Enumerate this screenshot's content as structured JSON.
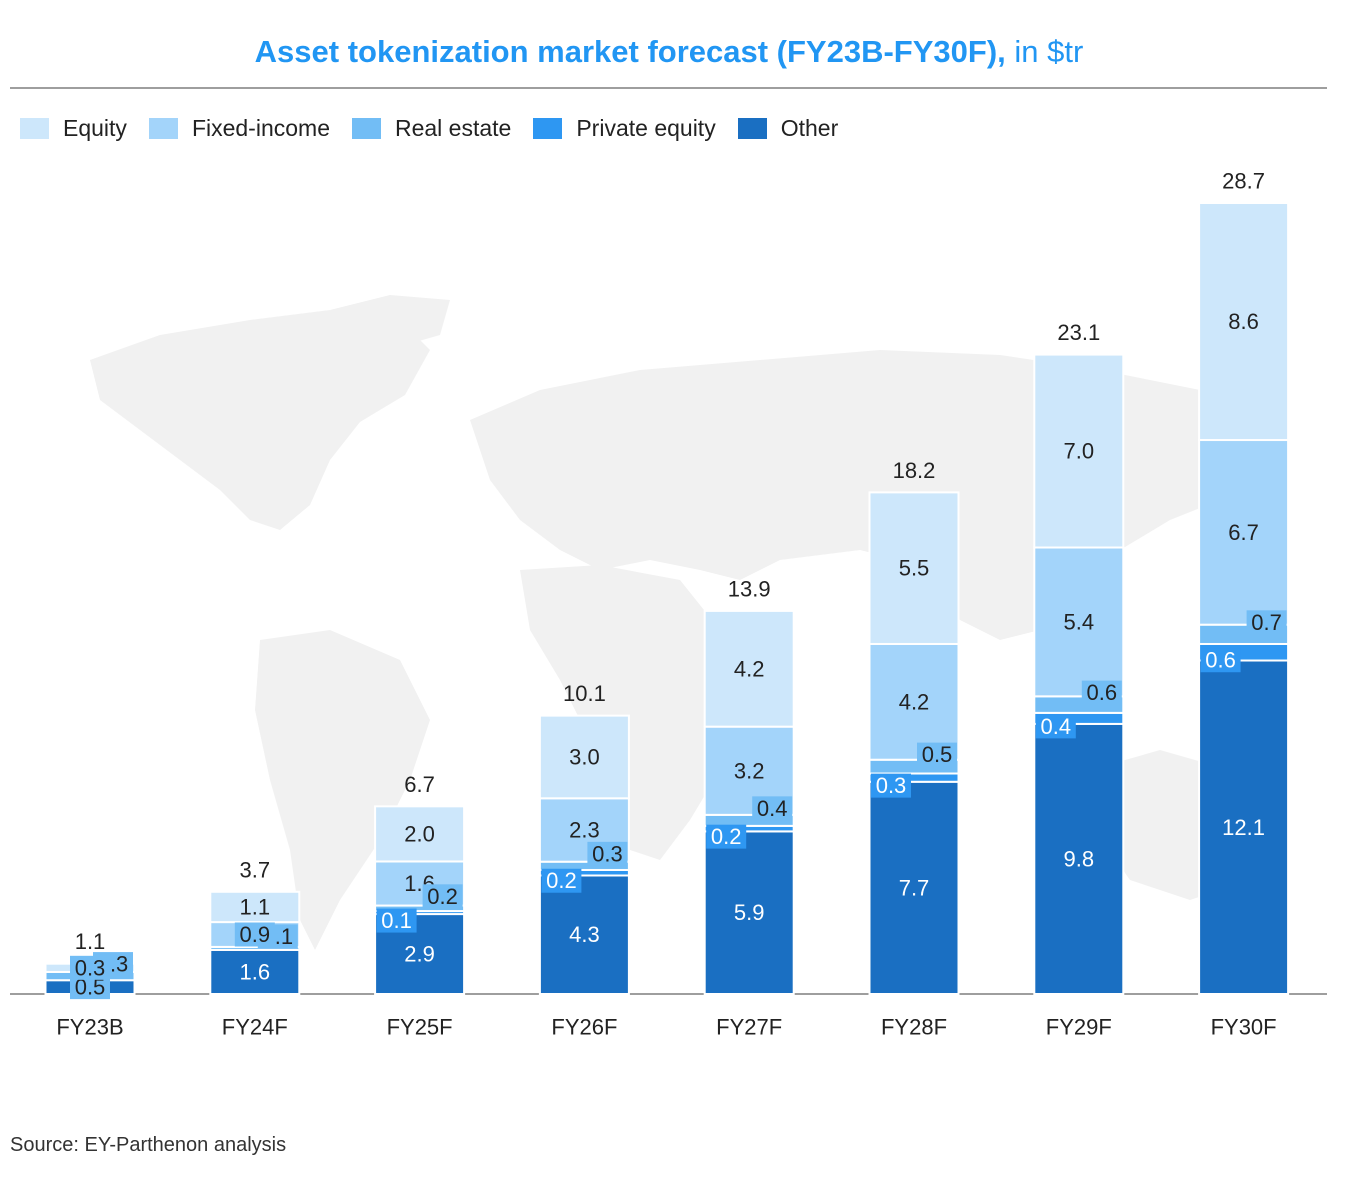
{
  "header": {
    "title_bold": "Asset tokenization market forecast (FY23B-FY30F),",
    "title_unit": " in $tr"
  },
  "footer": {
    "source": "Source: EY-Parthenon analysis"
  },
  "chart_data": {
    "type": "bar",
    "stacked": true,
    "categories": [
      "FY23B",
      "FY24F",
      "FY25F",
      "FY26F",
      "FY27F",
      "FY28F",
      "FY29F",
      "FY30F"
    ],
    "series": [
      {
        "name": "Other",
        "color": "#1A6FC2",
        "values": [
          0.5,
          1.6,
          2.9,
          4.3,
          5.9,
          7.7,
          9.8,
          12.1
        ],
        "labels": [
          "0.5",
          "1.6",
          "2.9",
          "4.3",
          "5.9",
          "7.7",
          "9.8",
          "12.1"
        ]
      },
      {
        "name": "Private equity",
        "color": "#2E97F2",
        "values": [
          0.0,
          0.0,
          0.1,
          0.2,
          0.2,
          0.3,
          0.4,
          0.6
        ],
        "labels": [
          "",
          "",
          "0.1",
          "0.2",
          "0.2",
          "0.3",
          "0.4",
          "0.6"
        ]
      },
      {
        "name": "Real estate",
        "color": "#72BDF5",
        "values": [
          0.3,
          0.1,
          0.2,
          0.3,
          0.4,
          0.5,
          0.6,
          0.7
        ],
        "labels": [
          "0.3",
          "0.1",
          "0.2",
          "0.3",
          "0.4",
          "0.5",
          "0.6",
          "0.7"
        ]
      },
      {
        "name": "Fixed-income",
        "color": "#A3D4FA",
        "values": [
          0.0,
          0.9,
          1.6,
          2.3,
          3.2,
          4.2,
          5.4,
          6.7
        ],
        "labels": [
          "",
          "0.9",
          "1.6",
          "2.3",
          "3.2",
          "4.2",
          "5.4",
          "6.7"
        ]
      },
      {
        "name": "Equity",
        "color": "#CDE7FB",
        "values": [
          0.3,
          1.1,
          2.0,
          3.0,
          4.2,
          5.5,
          7.0,
          8.6
        ],
        "labels": [
          "0.3",
          "1.1",
          "2.0",
          "3.0",
          "4.2",
          "5.5",
          "7.0",
          "8.6"
        ]
      }
    ],
    "totals": [
      "1.1",
      "3.7",
      "6.7",
      "10.1",
      "13.9",
      "18.2",
      "23.1",
      "28.7"
    ],
    "legend_order": [
      "Equity",
      "Fixed-income",
      "Real estate",
      "Private equity",
      "Other"
    ],
    "legend_position": "top-left",
    "ylim": [
      0,
      28.7
    ],
    "grid": false
  }
}
